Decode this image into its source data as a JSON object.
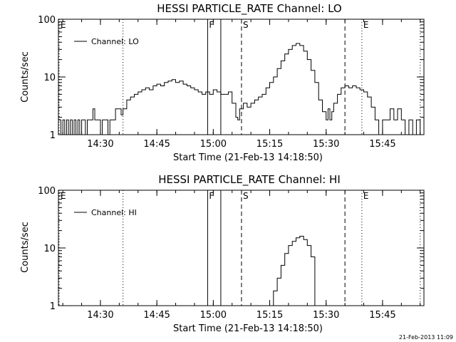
{
  "chart_data": [
    {
      "type": "line",
      "title": "HESSI PARTICLE_RATE Channel: LO",
      "xlabel": "Start Time (21-Feb-13 14:18:50)",
      "ylabel": "Counts/sec",
      "y_scale": "log",
      "ylim": [
        1,
        100
      ],
      "xlim": [
        "14:18:50",
        "15:56:00"
      ],
      "x_ticks": [
        "14:30",
        "14:45",
        "15:00",
        "15:15",
        "15:30",
        "15:45"
      ],
      "y_ticks": [
        "1",
        "10",
        "100"
      ],
      "grid": false,
      "legend": {
        "position": "top-left",
        "entries": [
          "Channel: LO"
        ]
      },
      "markers": [
        {
          "label": "E",
          "time": "14:18:50",
          "style": "dotted"
        },
        {
          "label": "",
          "time": "14:36:00",
          "style": "dotted"
        },
        {
          "label": "F",
          "time": "14:58:30",
          "style": "solid"
        },
        {
          "label": "",
          "time": "15:02:00",
          "style": "solid"
        },
        {
          "label": "S",
          "time": "15:07:30",
          "style": "dashed"
        },
        {
          "label": "",
          "time": "15:35:00",
          "style": "dashed"
        },
        {
          "label": "E",
          "time": "15:39:30",
          "style": "dotted"
        },
        {
          "label": "",
          "time": "15:55:00",
          "style": "dotted"
        }
      ],
      "series": [
        {
          "name": "Channel: LO",
          "points": [
            [
              "14:18:50",
              1.8
            ],
            [
              "14:19:30",
              1.0
            ],
            [
              "14:20:00",
              1.8
            ],
            [
              "14:20:30",
              1.0
            ],
            [
              "14:21:00",
              1.8
            ],
            [
              "14:21:30",
              1.0
            ],
            [
              "14:22:00",
              1.8
            ],
            [
              "14:22:30",
              1.0
            ],
            [
              "14:23:00",
              1.8
            ],
            [
              "14:23:30",
              1.0
            ],
            [
              "14:24:00",
              1.8
            ],
            [
              "14:24:30",
              1.0
            ],
            [
              "14:25:00",
              1.8
            ],
            [
              "14:25:30",
              1.8
            ],
            [
              "14:26:00",
              1.0
            ],
            [
              "14:26:30",
              1.8
            ],
            [
              "14:27:30",
              1.8
            ],
            [
              "14:28:00",
              2.8
            ],
            [
              "14:28:30",
              1.8
            ],
            [
              "14:29:30",
              1.8
            ],
            [
              "14:30:00",
              1.0
            ],
            [
              "14:30:30",
              1.8
            ],
            [
              "14:31:30",
              1.8
            ],
            [
              "14:32:00",
              1.0
            ],
            [
              "14:32:30",
              1.8
            ],
            [
              "14:33:30",
              1.8
            ],
            [
              "14:34:00",
              2.8
            ],
            [
              "14:35:00",
              2.8
            ],
            [
              "14:35:30",
              2.2
            ],
            [
              "14:36:00",
              2.8
            ],
            [
              "14:37:00",
              4.0
            ],
            [
              "14:38:00",
              4.5
            ],
            [
              "14:39:00",
              5.0
            ],
            [
              "14:40:00",
              5.5
            ],
            [
              "14:41:00",
              6.0
            ],
            [
              "14:42:00",
              6.5
            ],
            [
              "14:43:00",
              6.0
            ],
            [
              "14:44:00",
              7.0
            ],
            [
              "14:45:00",
              7.5
            ],
            [
              "14:46:00",
              7.0
            ],
            [
              "14:47:00",
              8.0
            ],
            [
              "14:48:00",
              8.5
            ],
            [
              "14:49:00",
              9.0
            ],
            [
              "14:50:00",
              8.0
            ],
            [
              "14:51:00",
              8.5
            ],
            [
              "14:52:00",
              7.5
            ],
            [
              "14:53:00",
              7.0
            ],
            [
              "14:54:00",
              6.5
            ],
            [
              "14:55:00",
              6.0
            ],
            [
              "14:56:00",
              5.5
            ],
            [
              "14:57:00",
              5.0
            ],
            [
              "14:58:00",
              5.5
            ],
            [
              "14:59:00",
              5.0
            ],
            [
              "15:00:00",
              6.0
            ],
            [
              "15:01:00",
              5.5
            ],
            [
              "15:02:00",
              5.0
            ],
            [
              "15:03:00",
              5.0
            ],
            [
              "15:04:00",
              5.5
            ],
            [
              "15:05:00",
              3.5
            ],
            [
              "15:06:00",
              2.0
            ],
            [
              "15:06:30",
              1.8
            ],
            [
              "15:07:00",
              2.8
            ],
            [
              "15:08:00",
              3.5
            ],
            [
              "15:09:00",
              3.0
            ],
            [
              "15:10:00",
              3.5
            ],
            [
              "15:11:00",
              4.0
            ],
            [
              "15:12:00",
              4.5
            ],
            [
              "15:13:00",
              5.0
            ],
            [
              "15:14:00",
              6.5
            ],
            [
              "15:15:00",
              8.0
            ],
            [
              "15:16:00",
              10.0
            ],
            [
              "15:17:00",
              14.0
            ],
            [
              "15:18:00",
              19.0
            ],
            [
              "15:19:00",
              25.0
            ],
            [
              "15:20:00",
              30.0
            ],
            [
              "15:21:00",
              35.0
            ],
            [
              "15:22:00",
              38.0
            ],
            [
              "15:23:00",
              35.0
            ],
            [
              "15:24:00",
              28.0
            ],
            [
              "15:25:00",
              20.0
            ],
            [
              "15:26:00",
              13.0
            ],
            [
              "15:27:00",
              8.0
            ],
            [
              "15:28:00",
              4.0
            ],
            [
              "15:29:00",
              2.5
            ],
            [
              "15:30:00",
              1.8
            ],
            [
              "15:30:30",
              2.8
            ],
            [
              "15:31:00",
              1.8
            ],
            [
              "15:31:30",
              2.5
            ],
            [
              "15:32:00",
              3.5
            ],
            [
              "15:33:00",
              5.0
            ],
            [
              "15:34:00",
              6.5
            ],
            [
              "15:35:00",
              7.0
            ],
            [
              "15:36:00",
              6.5
            ],
            [
              "15:37:00",
              7.0
            ],
            [
              "15:38:00",
              6.5
            ],
            [
              "15:39:00",
              6.0
            ],
            [
              "15:40:00",
              5.5
            ],
            [
              "15:41:00",
              4.5
            ],
            [
              "15:42:00",
              3.0
            ],
            [
              "15:43:00",
              1.8
            ],
            [
              "15:44:00",
              1.0
            ],
            [
              "15:45:00",
              1.8
            ],
            [
              "15:46:00",
              1.8
            ],
            [
              "15:47:00",
              2.8
            ],
            [
              "15:48:00",
              1.8
            ],
            [
              "15:49:00",
              2.8
            ],
            [
              "15:50:00",
              1.8
            ],
            [
              "15:51:00",
              1.0
            ],
            [
              "15:52:00",
              1.8
            ],
            [
              "15:53:00",
              1.0
            ],
            [
              "15:54:00",
              1.8
            ],
            [
              "15:55:00",
              1.0
            ],
            [
              "15:56:00",
              1.8
            ]
          ]
        }
      ]
    },
    {
      "type": "line",
      "title": "HESSI PARTICLE_RATE Channel: HI",
      "xlabel": "Start Time (21-Feb-13 14:18:50)",
      "ylabel": "Counts/sec",
      "y_scale": "log",
      "ylim": [
        1,
        100
      ],
      "xlim": [
        "14:18:50",
        "15:56:00"
      ],
      "x_ticks": [
        "14:30",
        "14:45",
        "15:00",
        "15:15",
        "15:30",
        "15:45"
      ],
      "y_ticks": [
        "1",
        "10",
        "100"
      ],
      "grid": false,
      "legend": {
        "position": "top-left",
        "entries": [
          "Channel: HI"
        ]
      },
      "markers": [
        {
          "label": "E",
          "time": "14:18:50",
          "style": "dotted"
        },
        {
          "label": "",
          "time": "14:36:00",
          "style": "dotted"
        },
        {
          "label": "F",
          "time": "14:58:30",
          "style": "solid"
        },
        {
          "label": "",
          "time": "15:02:00",
          "style": "solid"
        },
        {
          "label": "S",
          "time": "15:07:30",
          "style": "dashed"
        },
        {
          "label": "",
          "time": "15:35:00",
          "style": "dashed"
        },
        {
          "label": "E",
          "time": "15:39:30",
          "style": "dotted"
        },
        {
          "label": "",
          "time": "15:55:00",
          "style": "dotted"
        }
      ],
      "series": [
        {
          "name": "Channel: HI",
          "points": [
            [
              "15:15:00",
              1.0
            ],
            [
              "15:16:00",
              1.8
            ],
            [
              "15:17:00",
              3.0
            ],
            [
              "15:18:00",
              5.0
            ],
            [
              "15:19:00",
              8.0
            ],
            [
              "15:20:00",
              11.0
            ],
            [
              "15:21:00",
              13.0
            ],
            [
              "15:22:00",
              15.0
            ],
            [
              "15:23:00",
              16.0
            ],
            [
              "15:24:00",
              14.0
            ],
            [
              "15:25:00",
              11.0
            ],
            [
              "15:26:00",
              7.0
            ],
            [
              "15:27:00",
              1.0
            ]
          ]
        }
      ]
    }
  ],
  "timestamp": "21-Feb-2013 11:09"
}
